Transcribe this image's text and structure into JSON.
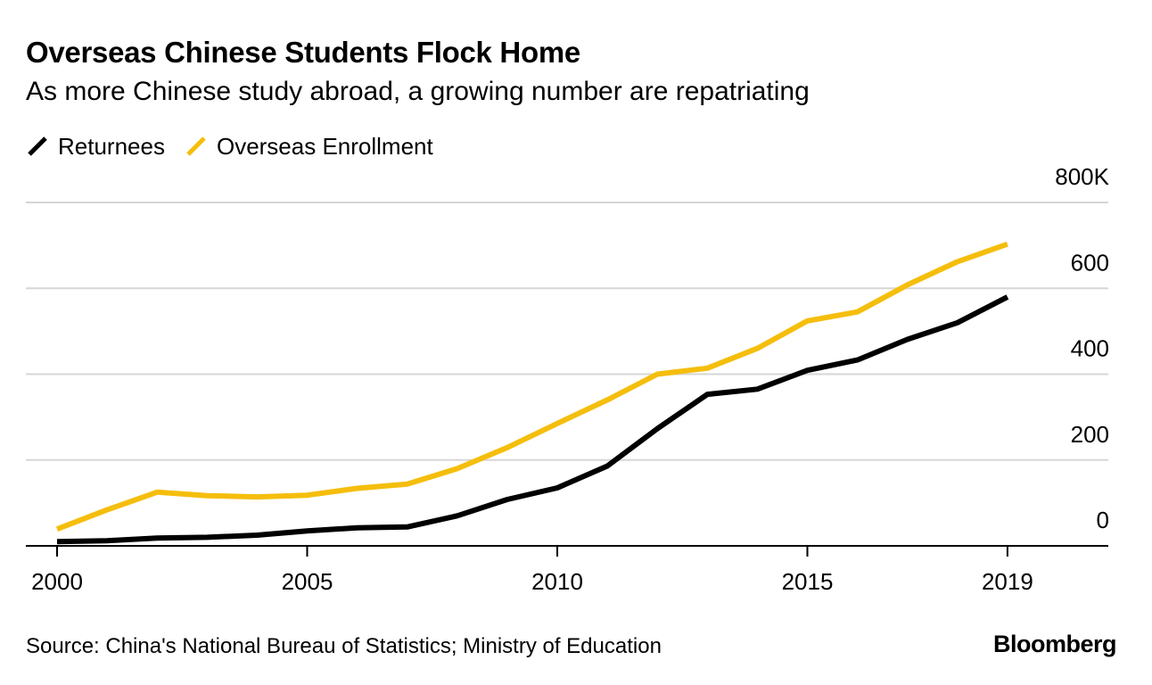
{
  "title": "Overseas Chinese Students Flock Home",
  "subtitle": "As more Chinese study abroad, a growing number are repatriating",
  "source": "Source: China's National Bureau of Statistics; Ministry of Education",
  "brand": "Bloomberg",
  "colors": {
    "returnees": "#000000",
    "enrollment": "#f5be0c",
    "grid": "#d6d6d6",
    "axis": "#000000"
  },
  "chart_data": {
    "type": "line",
    "title": "Overseas Chinese Students Flock Home",
    "xlabel": "",
    "ylabel": "",
    "x": [
      2000,
      2001,
      2002,
      2003,
      2004,
      2005,
      2006,
      2007,
      2008,
      2009,
      2010,
      2011,
      2012,
      2013,
      2014,
      2015,
      2016,
      2017,
      2018,
      2019
    ],
    "xlim": [
      2000,
      2020
    ],
    "ylim": [
      0,
      800
    ],
    "x_ticks": [
      2000,
      2005,
      2010,
      2015,
      2019
    ],
    "x_tick_labels": [
      "2000",
      "2005",
      "2010",
      "2015",
      "2019"
    ],
    "y_ticks": [
      0,
      200,
      400,
      600,
      800
    ],
    "y_tick_labels": [
      "0",
      "200",
      "400",
      "600",
      "800K"
    ],
    "y_axis_side": "right",
    "grid": true,
    "legend_position": "top-left",
    "series": [
      {
        "name": "Returnees",
        "color": "#000000",
        "values": [
          10,
          12,
          18,
          20,
          25,
          35,
          42,
          44,
          70,
          108,
          135,
          186,
          273,
          353,
          365,
          409,
          433,
          481,
          520,
          580
        ]
      },
      {
        "name": "Overseas Enrollment",
        "color": "#f5be0c",
        "values": [
          39,
          84,
          125,
          117,
          114,
          118,
          134,
          144,
          180,
          229,
          285,
          340,
          400,
          414,
          460,
          524,
          545,
          608,
          662,
          703
        ]
      }
    ]
  }
}
